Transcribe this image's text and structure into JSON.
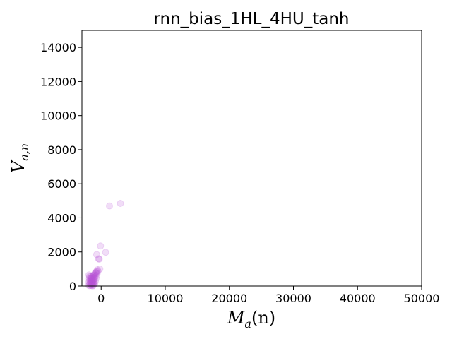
{
  "chart_data": {
    "type": "scatter",
    "title": "rnn_bias_1HL_4HU_tanh",
    "xlabel": {
      "main": "M",
      "sub": "a",
      "suffix": "(n)"
    },
    "ylabel": {
      "main": "V",
      "sub": "a,n"
    },
    "xlim": [
      -3000,
      50000
    ],
    "ylim": [
      0,
      15000
    ],
    "xticks": [
      0,
      10000,
      20000,
      30000,
      40000,
      50000
    ],
    "yticks": [
      0,
      2000,
      4000,
      6000,
      8000,
      10000,
      12000,
      14000
    ],
    "xtick_labels": [
      "0",
      "10000",
      "20000",
      "30000",
      "40000",
      "50000"
    ],
    "ytick_labels": [
      "0",
      "2000",
      "4000",
      "6000",
      "8000",
      "10000",
      "12000",
      "14000"
    ],
    "grid": false,
    "marker_color": "#b855d8",
    "marker_alpha": 0.2,
    "points": [
      [
        3000,
        4850
      ],
      [
        1300,
        4700
      ],
      [
        -100,
        2350
      ],
      [
        700,
        1980
      ],
      [
        -700,
        1850
      ],
      [
        -400,
        1600
      ],
      [
        -300,
        1580
      ],
      [
        -200,
        1000
      ],
      [
        -600,
        950
      ],
      [
        -500,
        880
      ],
      [
        -700,
        850
      ],
      [
        -900,
        800
      ],
      [
        -800,
        780
      ],
      [
        -600,
        760
      ],
      [
        -1000,
        720
      ],
      [
        -1100,
        680
      ],
      [
        -900,
        650
      ],
      [
        -1200,
        620
      ],
      [
        -1300,
        600
      ],
      [
        -1800,
        580
      ],
      [
        -1600,
        560
      ],
      [
        -1000,
        540
      ],
      [
        -1400,
        520
      ],
      [
        -1200,
        500
      ],
      [
        -1500,
        480
      ],
      [
        -1700,
        460
      ],
      [
        -1300,
        440
      ],
      [
        -1100,
        420
      ],
      [
        -1600,
        400
      ],
      [
        -1400,
        380
      ],
      [
        -1200,
        360
      ],
      [
        -1800,
        340
      ],
      [
        -1500,
        320
      ],
      [
        -1300,
        300
      ],
      [
        -1700,
        280
      ],
      [
        -1100,
        260
      ],
      [
        -1400,
        240
      ],
      [
        -1600,
        220
      ],
      [
        -1200,
        200
      ],
      [
        -1500,
        180
      ],
      [
        -1800,
        160
      ],
      [
        -1300,
        140
      ],
      [
        -1700,
        120
      ],
      [
        -1100,
        100
      ],
      [
        -1400,
        80
      ],
      [
        -1600,
        60
      ],
      [
        -1200,
        40
      ],
      [
        -1500,
        30
      ],
      [
        -1800,
        20
      ],
      [
        -1300,
        10
      ],
      [
        -1000,
        150
      ],
      [
        -900,
        300
      ],
      [
        -800,
        450
      ],
      [
        -700,
        600
      ],
      [
        -1900,
        650
      ],
      [
        -1950,
        50
      ],
      [
        -1900,
        250
      ],
      [
        -1850,
        450
      ]
    ]
  }
}
